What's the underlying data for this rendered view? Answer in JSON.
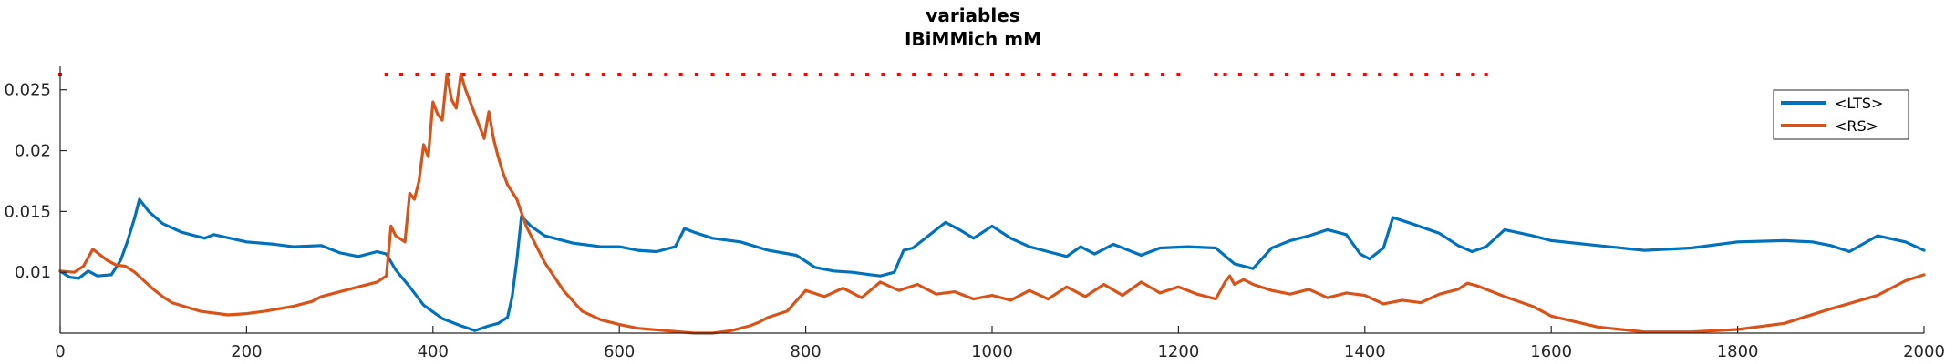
{
  "chart_data": {
    "type": "line",
    "title": "variables",
    "subtitle": "IBiMMich mM",
    "xlabel": "",
    "ylabel": "",
    "xlim": [
      0,
      2000
    ],
    "ylim": [
      0.005,
      0.027
    ],
    "xticks": [
      0,
      200,
      400,
      600,
      800,
      1000,
      1200,
      1400,
      1600,
      1800,
      2000
    ],
    "yticks": [
      0.01,
      0.015,
      0.02,
      0.025
    ],
    "xtick_labels": [
      "0",
      "200",
      "400",
      "600",
      "800",
      "1000",
      "1200",
      "1400",
      "1600",
      "1800",
      "2000"
    ],
    "ytick_labels": [
      "0.01",
      "0.015",
      "0.02",
      "0.025"
    ],
    "grid": false,
    "legend_position": "top-right",
    "series": [
      {
        "name": "<LTS>",
        "color": "#0072BD",
        "x": [
          0,
          10,
          20,
          30,
          40,
          55,
          65,
          72,
          80,
          85,
          95,
          110,
          130,
          155,
          165,
          200,
          230,
          250,
          280,
          300,
          320,
          340,
          350,
          360,
          375,
          390,
          410,
          430,
          445,
          460,
          470,
          480,
          485,
          490,
          495,
          505,
          520,
          550,
          580,
          600,
          620,
          640,
          660,
          670,
          680,
          700,
          730,
          760,
          790,
          810,
          830,
          850,
          870,
          880,
          895,
          905,
          915,
          935,
          950,
          965,
          980,
          1000,
          1020,
          1040,
          1060,
          1080,
          1095,
          1110,
          1130,
          1160,
          1180,
          1210,
          1240,
          1260,
          1280,
          1300,
          1320,
          1340,
          1360,
          1380,
          1395,
          1405,
          1420,
          1430,
          1450,
          1480,
          1500,
          1515,
          1530,
          1550,
          1580,
          1600,
          1650,
          1700,
          1750,
          1800,
          1850,
          1880,
          1900,
          1920,
          1950,
          1980,
          2000
        ],
        "values": [
          0.0101,
          0.0096,
          0.0095,
          0.0101,
          0.0097,
          0.0098,
          0.011,
          0.0125,
          0.0145,
          0.016,
          0.015,
          0.014,
          0.0133,
          0.0128,
          0.0131,
          0.0125,
          0.0123,
          0.0121,
          0.0122,
          0.0116,
          0.0113,
          0.0117,
          0.0115,
          0.0102,
          0.0088,
          0.0073,
          0.0062,
          0.0056,
          0.0052,
          0.0056,
          0.0058,
          0.0063,
          0.008,
          0.011,
          0.0146,
          0.0138,
          0.013,
          0.0124,
          0.0121,
          0.0121,
          0.0118,
          0.0117,
          0.0121,
          0.0136,
          0.0133,
          0.0128,
          0.0125,
          0.0118,
          0.0114,
          0.0104,
          0.0101,
          0.01,
          0.0098,
          0.0097,
          0.01,
          0.0118,
          0.012,
          0.0132,
          0.0141,
          0.0135,
          0.0128,
          0.0138,
          0.0128,
          0.0121,
          0.0117,
          0.0113,
          0.0121,
          0.0115,
          0.0123,
          0.0114,
          0.012,
          0.0121,
          0.012,
          0.0107,
          0.0103,
          0.012,
          0.0126,
          0.013,
          0.0135,
          0.0131,
          0.0115,
          0.0111,
          0.012,
          0.0145,
          0.014,
          0.0132,
          0.0122,
          0.0117,
          0.0121,
          0.0135,
          0.013,
          0.0126,
          0.0122,
          0.0118,
          0.012,
          0.0125,
          0.0126,
          0.0125,
          0.0122,
          0.0117,
          0.013,
          0.0125,
          0.0118
        ]
      },
      {
        "name": "<RS>",
        "color": "#D95319",
        "x": [
          0,
          15,
          25,
          35,
          50,
          60,
          70,
          80,
          90,
          100,
          110,
          120,
          150,
          180,
          200,
          220,
          250,
          270,
          280,
          300,
          320,
          340,
          350,
          355,
          360,
          370,
          375,
          380,
          385,
          390,
          395,
          400,
          405,
          410,
          415,
          420,
          425,
          430,
          435,
          440,
          445,
          450,
          455,
          460,
          465,
          470,
          475,
          480,
          490,
          500,
          520,
          540,
          560,
          580,
          600,
          620,
          650,
          680,
          700,
          720,
          740,
          750,
          760,
          780,
          800,
          820,
          840,
          860,
          880,
          900,
          920,
          940,
          960,
          980,
          1000,
          1020,
          1040,
          1060,
          1080,
          1100,
          1120,
          1140,
          1160,
          1180,
          1200,
          1220,
          1240,
          1250,
          1255,
          1260,
          1270,
          1280,
          1300,
          1320,
          1340,
          1360,
          1380,
          1400,
          1420,
          1440,
          1460,
          1480,
          1500,
          1510,
          1520,
          1550,
          1580,
          1600,
          1650,
          1700,
          1750,
          1800,
          1850,
          1900,
          1950,
          1980,
          2000
        ],
        "values": [
          0.0101,
          0.01,
          0.0105,
          0.0119,
          0.011,
          0.0106,
          0.0105,
          0.01,
          0.0093,
          0.0086,
          0.008,
          0.0075,
          0.0068,
          0.0065,
          0.0066,
          0.0068,
          0.0072,
          0.0076,
          0.008,
          0.0084,
          0.0088,
          0.0092,
          0.0097,
          0.0138,
          0.013,
          0.0125,
          0.0165,
          0.016,
          0.0175,
          0.0205,
          0.0195,
          0.024,
          0.023,
          0.0225,
          0.0263,
          0.0242,
          0.0235,
          0.0263,
          0.025,
          0.024,
          0.023,
          0.022,
          0.021,
          0.0232,
          0.021,
          0.0195,
          0.0182,
          0.0172,
          0.016,
          0.0138,
          0.0108,
          0.0085,
          0.0068,
          0.0061,
          0.0057,
          0.0054,
          0.0052,
          0.005,
          0.0049,
          0.0052,
          0.0056,
          0.0059,
          0.0063,
          0.0068,
          0.0085,
          0.008,
          0.0087,
          0.0079,
          0.0092,
          0.0085,
          0.009,
          0.0082,
          0.0084,
          0.0078,
          0.0081,
          0.0077,
          0.0085,
          0.0078,
          0.0088,
          0.008,
          0.009,
          0.0081,
          0.0092,
          0.0083,
          0.0088,
          0.0082,
          0.0078,
          0.0092,
          0.0097,
          0.009,
          0.0094,
          0.009,
          0.0085,
          0.0082,
          0.0086,
          0.0079,
          0.0083,
          0.0081,
          0.0074,
          0.0077,
          0.0075,
          0.0082,
          0.0086,
          0.0091,
          0.0089,
          0.008,
          0.0072,
          0.0064,
          0.0055,
          0.0051,
          0.0051,
          0.0053,
          0.0058,
          0.007,
          0.0081,
          0.0093,
          0.0098
        ]
      }
    ],
    "event_markers": {
      "color": "#FF0000",
      "y": 0.02625,
      "x": [
        0,
        350,
        366,
        383,
        400,
        416,
        433,
        450,
        466,
        483,
        500,
        516,
        533,
        550,
        566,
        583,
        600,
        616,
        633,
        650,
        666,
        683,
        700,
        716,
        733,
        750,
        766,
        783,
        800,
        816,
        833,
        850,
        866,
        883,
        900,
        916,
        933,
        950,
        966,
        983,
        1000,
        1016,
        1033,
        1050,
        1066,
        1083,
        1100,
        1116,
        1133,
        1150,
        1166,
        1183,
        1200,
        1240,
        1250,
        1266,
        1283,
        1300,
        1316,
        1333,
        1350,
        1366,
        1383,
        1400,
        1416,
        1433,
        1450,
        1466,
        1483,
        1500,
        1516,
        1530
      ]
    }
  }
}
